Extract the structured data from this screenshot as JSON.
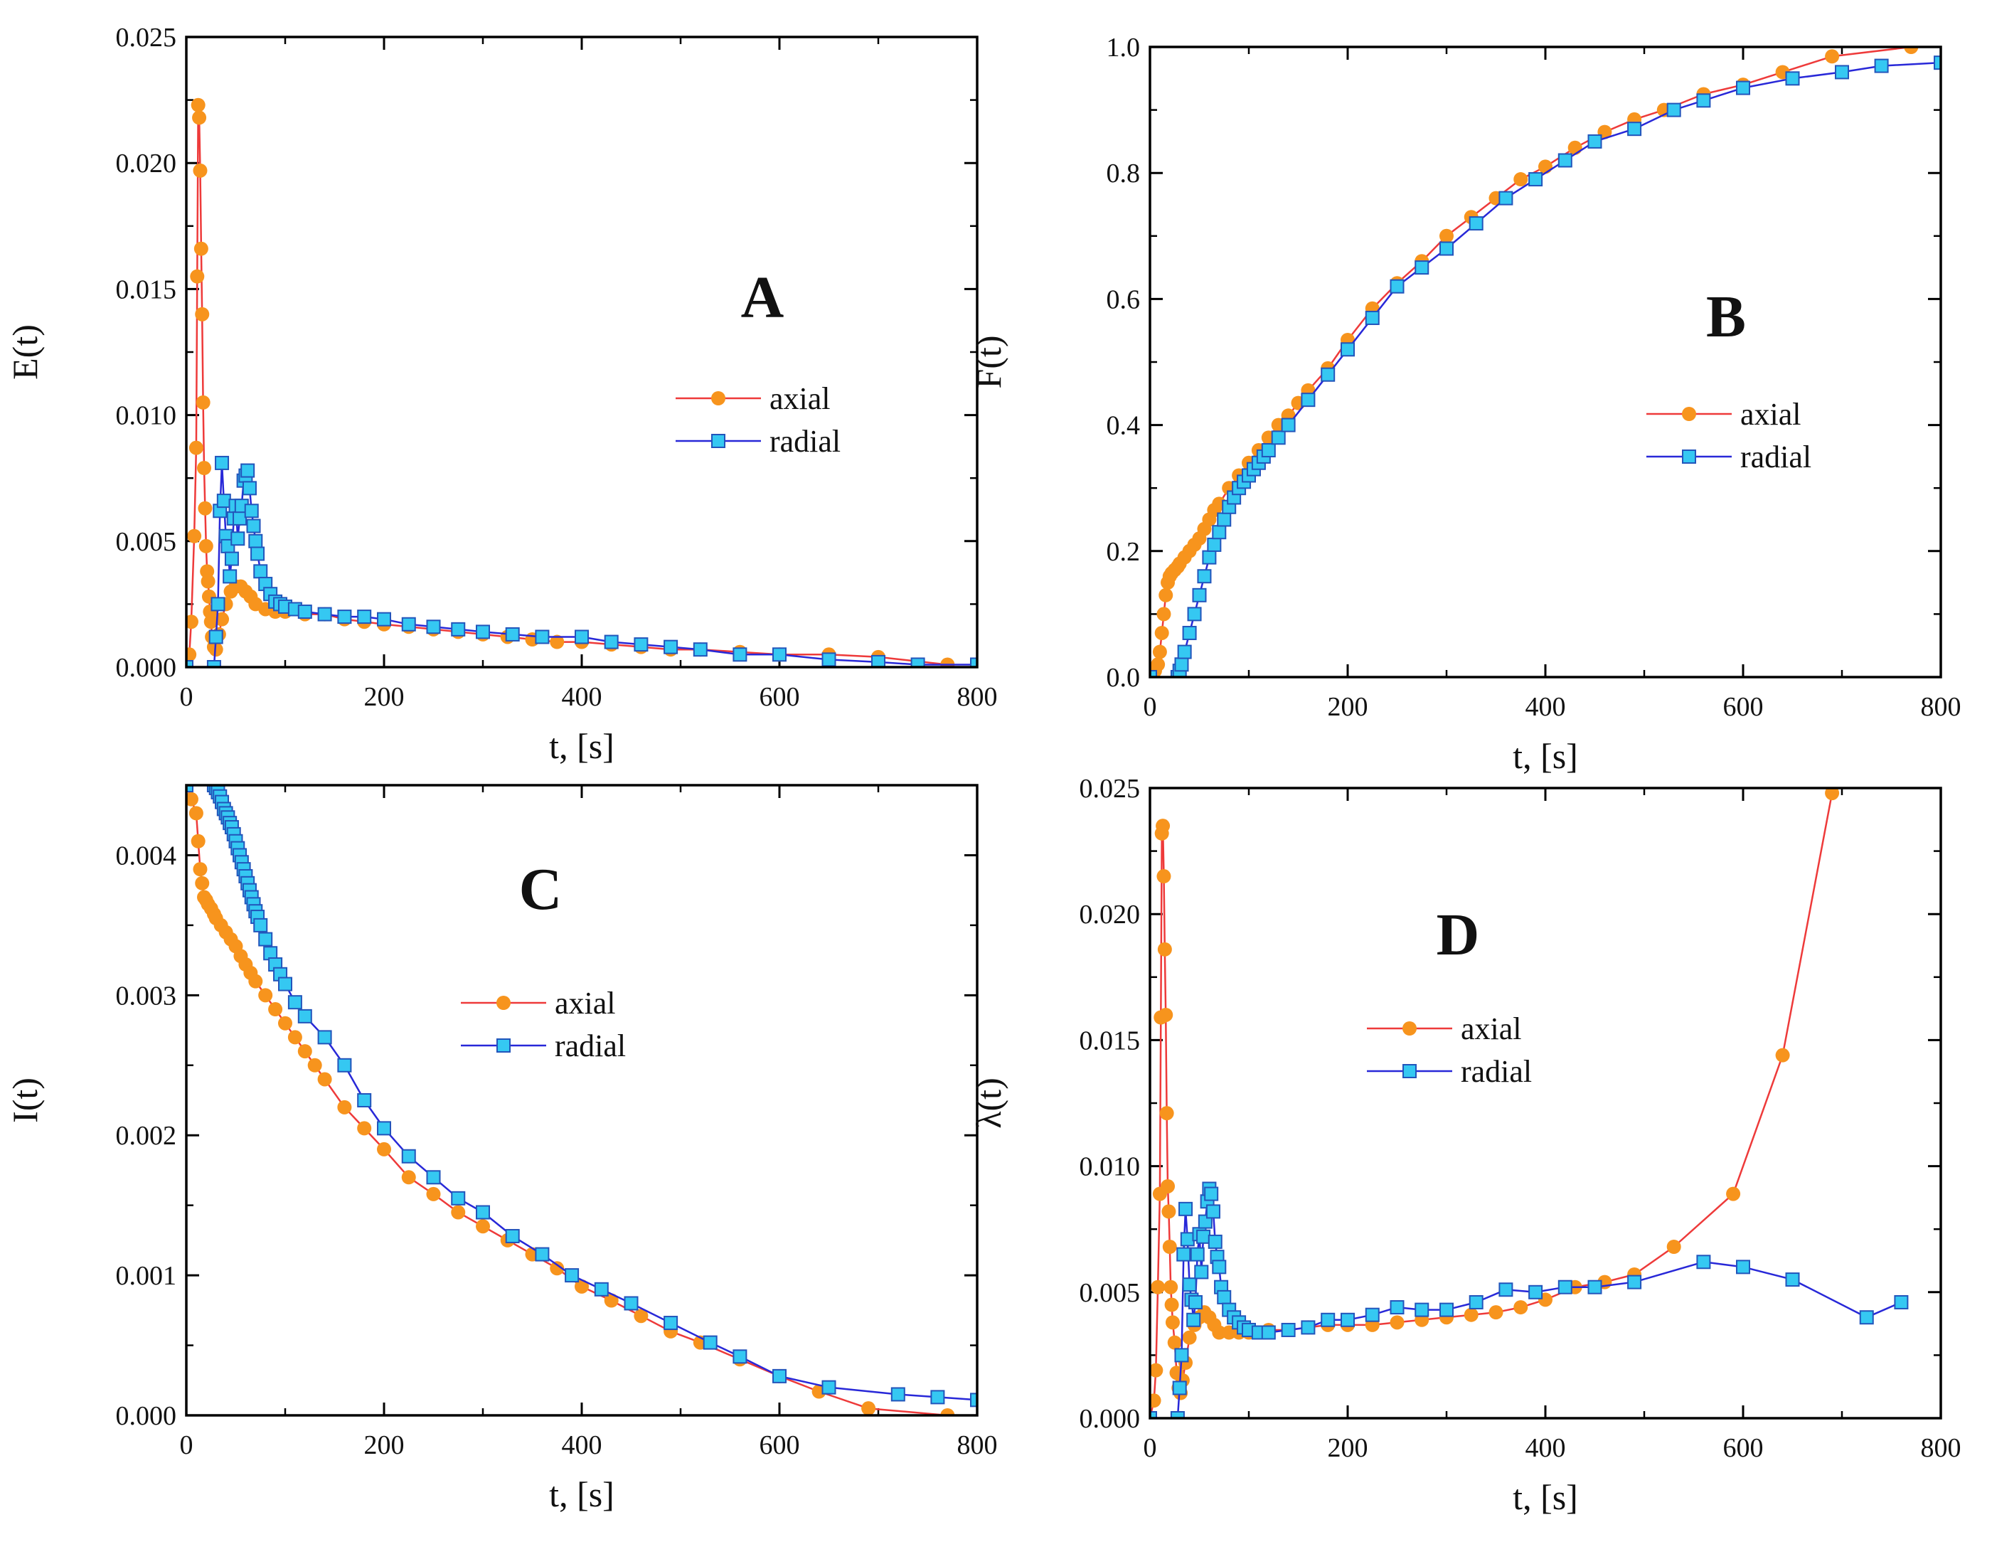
{
  "colors": {
    "axial_line": "#ee3a3a",
    "axial_marker": "#f7941d",
    "radial_line": "#2828d8",
    "radial_marker": "#35c8f2",
    "radial_marker_edge": "#2255bb",
    "axis": "#000000"
  },
  "chart_data": [
    {
      "type": "line",
      "panel": "A",
      "title": "",
      "xlabel": "t, [s]",
      "ylabel": "E(t)",
      "xlim": [
        0,
        800
      ],
      "ylim": [
        0,
        0.025
      ],
      "xticks": [
        "0",
        "200",
        "400",
        "600",
        "800"
      ],
      "yticks": [
        "0.000",
        "0.005",
        "0.010",
        "0.015",
        "0.020",
        "0.025"
      ],
      "legend": "center-right",
      "series": [
        {
          "name": "axial",
          "x": [
            0,
            3,
            5,
            8,
            10,
            11,
            12,
            13,
            14,
            15,
            16,
            17,
            18,
            19,
            20,
            21,
            22,
            23,
            24,
            25,
            26,
            28,
            30,
            33,
            36,
            40,
            45,
            50,
            55,
            60,
            65,
            70,
            80,
            90,
            100,
            120,
            140,
            160,
            180,
            200,
            225,
            250,
            275,
            300,
            325,
            350,
            375,
            400,
            430,
            460,
            490,
            520,
            560,
            600,
            650,
            700,
            770
          ],
          "y": [
            0.0,
            0.0005,
            0.0018,
            0.0052,
            0.0087,
            0.0155,
            0.0223,
            0.0218,
            0.0197,
            0.0166,
            0.014,
            0.0105,
            0.0079,
            0.0063,
            0.0048,
            0.0038,
            0.0034,
            0.0028,
            0.0022,
            0.0018,
            0.0012,
            0.0008,
            0.0007,
            0.0013,
            0.0019,
            0.0025,
            0.003,
            0.0032,
            0.0032,
            0.003,
            0.0028,
            0.0025,
            0.0023,
            0.0022,
            0.0022,
            0.0021,
            0.0021,
            0.0019,
            0.0018,
            0.0017,
            0.0016,
            0.0015,
            0.0014,
            0.0013,
            0.0012,
            0.0011,
            0.001,
            0.001,
            0.0009,
            0.0008,
            0.0007,
            0.0007,
            0.0006,
            0.0005,
            0.0005,
            0.0004,
            0.0001
          ]
        },
        {
          "name": "radial",
          "x": [
            0,
            28,
            30,
            32,
            34,
            36,
            38,
            40,
            42,
            44,
            46,
            48,
            50,
            52,
            54,
            56,
            58,
            60,
            62,
            64,
            66,
            68,
            70,
            72,
            75,
            80,
            85,
            90,
            95,
            100,
            110,
            120,
            140,
            160,
            180,
            200,
            225,
            250,
            275,
            300,
            330,
            360,
            400,
            430,
            460,
            490,
            520,
            560,
            600,
            650,
            700,
            740,
            800
          ],
          "y": [
            0.0,
            0.0,
            0.0012,
            0.0025,
            0.0062,
            0.0081,
            0.0066,
            0.0052,
            0.0048,
            0.0036,
            0.0043,
            0.0059,
            0.0064,
            0.0051,
            0.0059,
            0.0064,
            0.0074,
            0.0076,
            0.0078,
            0.0071,
            0.0062,
            0.0056,
            0.005,
            0.0045,
            0.0038,
            0.0033,
            0.0029,
            0.0026,
            0.0025,
            0.0024,
            0.0023,
            0.0022,
            0.0021,
            0.002,
            0.002,
            0.0019,
            0.0017,
            0.0016,
            0.0015,
            0.0014,
            0.0013,
            0.0012,
            0.0012,
            0.001,
            0.0009,
            0.0008,
            0.0007,
            0.0005,
            0.0005,
            0.0003,
            0.0002,
            0.0001,
            0.0001
          ]
        }
      ]
    },
    {
      "type": "line",
      "panel": "B",
      "title": "",
      "xlabel": "t, [s]",
      "ylabel": "F(t)",
      "xlim": [
        0,
        800
      ],
      "ylim": [
        0,
        1.0
      ],
      "xticks": [
        "0",
        "200",
        "400",
        "600",
        "800"
      ],
      "yticks": [
        "0.0",
        "0.2",
        "0.4",
        "0.6",
        "0.8",
        "1.0"
      ],
      "legend": "center-right",
      "series": [
        {
          "name": "axial",
          "x": [
            0,
            5,
            8,
            10,
            12,
            14,
            16,
            18,
            20,
            22,
            25,
            28,
            30,
            35,
            40,
            45,
            50,
            55,
            60,
            65,
            70,
            80,
            90,
            100,
            110,
            120,
            130,
            140,
            150,
            160,
            180,
            200,
            225,
            250,
            275,
            300,
            325,
            350,
            375,
            400,
            430,
            460,
            490,
            520,
            560,
            600,
            640,
            690,
            770
          ],
          "y": [
            0.0,
            0.01,
            0.02,
            0.04,
            0.07,
            0.1,
            0.13,
            0.15,
            0.16,
            0.165,
            0.17,
            0.175,
            0.18,
            0.19,
            0.2,
            0.21,
            0.22,
            0.235,
            0.25,
            0.265,
            0.275,
            0.3,
            0.32,
            0.34,
            0.36,
            0.38,
            0.4,
            0.415,
            0.435,
            0.455,
            0.49,
            0.535,
            0.585,
            0.625,
            0.66,
            0.7,
            0.73,
            0.76,
            0.79,
            0.81,
            0.84,
            0.865,
            0.885,
            0.9,
            0.925,
            0.94,
            0.96,
            0.985,
            1.0
          ]
        },
        {
          "name": "radial",
          "x": [
            0,
            28,
            30,
            32,
            35,
            40,
            45,
            50,
            55,
            60,
            65,
            70,
            75,
            80,
            85,
            90,
            95,
            100,
            105,
            110,
            115,
            120,
            130,
            140,
            160,
            180,
            200,
            225,
            250,
            275,
            300,
            330,
            360,
            390,
            420,
            450,
            490,
            530,
            560,
            600,
            650,
            700,
            740,
            800
          ],
          "y": [
            0.0,
            0.0,
            0.01,
            0.02,
            0.04,
            0.07,
            0.1,
            0.13,
            0.16,
            0.19,
            0.21,
            0.23,
            0.25,
            0.27,
            0.285,
            0.3,
            0.31,
            0.32,
            0.33,
            0.34,
            0.35,
            0.36,
            0.38,
            0.4,
            0.44,
            0.48,
            0.52,
            0.57,
            0.62,
            0.65,
            0.68,
            0.72,
            0.76,
            0.79,
            0.82,
            0.85,
            0.87,
            0.9,
            0.915,
            0.935,
            0.95,
            0.96,
            0.97,
            0.975
          ]
        }
      ]
    },
    {
      "type": "line",
      "panel": "C",
      "title": "",
      "xlabel": "t, [s]",
      "ylabel": "I(t)",
      "xlim": [
        0,
        800
      ],
      "ylim": [
        0,
        0.0045
      ],
      "xticks": [
        "0",
        "200",
        "400",
        "600",
        "800"
      ],
      "yticks": [
        "0.000",
        "0.001",
        "0.002",
        "0.003",
        "0.004"
      ],
      "legend": "center",
      "series": [
        {
          "name": "axial",
          "x": [
            0,
            5,
            10,
            12,
            14,
            16,
            18,
            20,
            22,
            25,
            28,
            30,
            35,
            40,
            45,
            50,
            55,
            60,
            65,
            70,
            80,
            90,
            100,
            110,
            120,
            130,
            140,
            160,
            180,
            200,
            225,
            250,
            275,
            300,
            325,
            350,
            375,
            400,
            430,
            460,
            490,
            520,
            560,
            600,
            640,
            690,
            770
          ],
          "y": [
            0.0045,
            0.0044,
            0.0043,
            0.0041,
            0.0039,
            0.0038,
            0.0037,
            0.00368,
            0.00365,
            0.00362,
            0.00358,
            0.00355,
            0.0035,
            0.00345,
            0.0034,
            0.00335,
            0.00328,
            0.00322,
            0.00316,
            0.0031,
            0.003,
            0.0029,
            0.0028,
            0.0027,
            0.0026,
            0.0025,
            0.0024,
            0.0022,
            0.00205,
            0.0019,
            0.0017,
            0.00158,
            0.00145,
            0.00135,
            0.00125,
            0.00115,
            0.00105,
            0.00092,
            0.00082,
            0.00071,
            0.0006,
            0.00052,
            0.0004,
            0.00028,
            0.00017,
            5e-05,
            0.0
          ]
        },
        {
          "name": "radial",
          "x": [
            0,
            28,
            30,
            32,
            34,
            36,
            38,
            40,
            42,
            44,
            46,
            48,
            50,
            52,
            54,
            56,
            58,
            60,
            62,
            64,
            66,
            68,
            70,
            72,
            75,
            80,
            85,
            90,
            95,
            100,
            110,
            120,
            140,
            160,
            180,
            200,
            225,
            250,
            275,
            300,
            330,
            360,
            390,
            420,
            450,
            490,
            530,
            560,
            600,
            650,
            720,
            760,
            800
          ],
          "y": [
            0.0045,
            0.0045,
            0.00448,
            0.00445,
            0.00442,
            0.00438,
            0.00433,
            0.0043,
            0.00427,
            0.00423,
            0.0042,
            0.00415,
            0.0041,
            0.00405,
            0.004,
            0.00395,
            0.0039,
            0.00385,
            0.0038,
            0.00375,
            0.0037,
            0.00365,
            0.0036,
            0.00356,
            0.0035,
            0.0034,
            0.0033,
            0.00322,
            0.00315,
            0.00308,
            0.00295,
            0.00285,
            0.0027,
            0.0025,
            0.00225,
            0.00205,
            0.00185,
            0.0017,
            0.00155,
            0.00145,
            0.00128,
            0.00115,
            0.001,
            0.0009,
            0.0008,
            0.00066,
            0.00052,
            0.00042,
            0.00028,
            0.0002,
            0.00015,
            0.00013,
            0.00011
          ]
        }
      ]
    },
    {
      "type": "line",
      "panel": "D",
      "title": "",
      "xlabel": "t, [s]",
      "ylabel": "λ(t)",
      "xlim": [
        0,
        800
      ],
      "ylim": [
        0,
        0.025
      ],
      "xticks": [
        "0",
        "200",
        "400",
        "600",
        "800"
      ],
      "yticks": [
        "0.000",
        "0.005",
        "0.010",
        "0.015",
        "0.020",
        "0.025"
      ],
      "legend": "center",
      "series": [
        {
          "name": "axial",
          "x": [
            0,
            4,
            6,
            8,
            10,
            11,
            12,
            13,
            14,
            15,
            16,
            17,
            18,
            19,
            20,
            21,
            22,
            23,
            25,
            27,
            29,
            31,
            33,
            36,
            40,
            45,
            50,
            55,
            60,
            65,
            70,
            80,
            90,
            100,
            120,
            140,
            160,
            180,
            200,
            225,
            250,
            275,
            300,
            325,
            350,
            375,
            400,
            430,
            460,
            490,
            530,
            590,
            640,
            690
          ],
          "y": [
            0.0,
            0.0007,
            0.0019,
            0.0052,
            0.0089,
            0.0159,
            0.0232,
            0.0235,
            0.0215,
            0.0186,
            0.016,
            0.0121,
            0.0092,
            0.0082,
            0.0068,
            0.0052,
            0.0045,
            0.0038,
            0.003,
            0.0018,
            0.0012,
            0.001,
            0.0015,
            0.0022,
            0.0032,
            0.0037,
            0.004,
            0.0042,
            0.004,
            0.0037,
            0.0034,
            0.0034,
            0.0034,
            0.0034,
            0.0035,
            0.0035,
            0.0036,
            0.0037,
            0.0037,
            0.0037,
            0.0038,
            0.0039,
            0.004,
            0.0041,
            0.0042,
            0.0044,
            0.0047,
            0.0052,
            0.0054,
            0.0057,
            0.0068,
            0.0089,
            0.0144,
            0.0248
          ]
        },
        {
          "name": "radial",
          "x": [
            0,
            28,
            30,
            32,
            34,
            36,
            38,
            40,
            42,
            44,
            46,
            48,
            50,
            52,
            54,
            56,
            58,
            60,
            62,
            64,
            66,
            68,
            70,
            72,
            75,
            80,
            85,
            90,
            95,
            100,
            110,
            120,
            140,
            160,
            180,
            200,
            225,
            250,
            275,
            300,
            330,
            360,
            390,
            420,
            450,
            490,
            560,
            600,
            650,
            725,
            760
          ],
          "y": [
            0.0,
            0.0,
            0.0012,
            0.0025,
            0.0065,
            0.0083,
            0.0071,
            0.0053,
            0.0047,
            0.0039,
            0.0046,
            0.0065,
            0.0073,
            0.0058,
            0.0072,
            0.0078,
            0.0086,
            0.0091,
            0.0089,
            0.0082,
            0.007,
            0.0064,
            0.006,
            0.0052,
            0.0048,
            0.0043,
            0.004,
            0.0038,
            0.0036,
            0.0035,
            0.0034,
            0.0034,
            0.0035,
            0.0036,
            0.0039,
            0.0039,
            0.0041,
            0.0044,
            0.0043,
            0.0043,
            0.0046,
            0.0051,
            0.005,
            0.0052,
            0.0052,
            0.0054,
            0.0062,
            0.006,
            0.0055,
            0.004,
            0.0046
          ]
        }
      ]
    }
  ]
}
